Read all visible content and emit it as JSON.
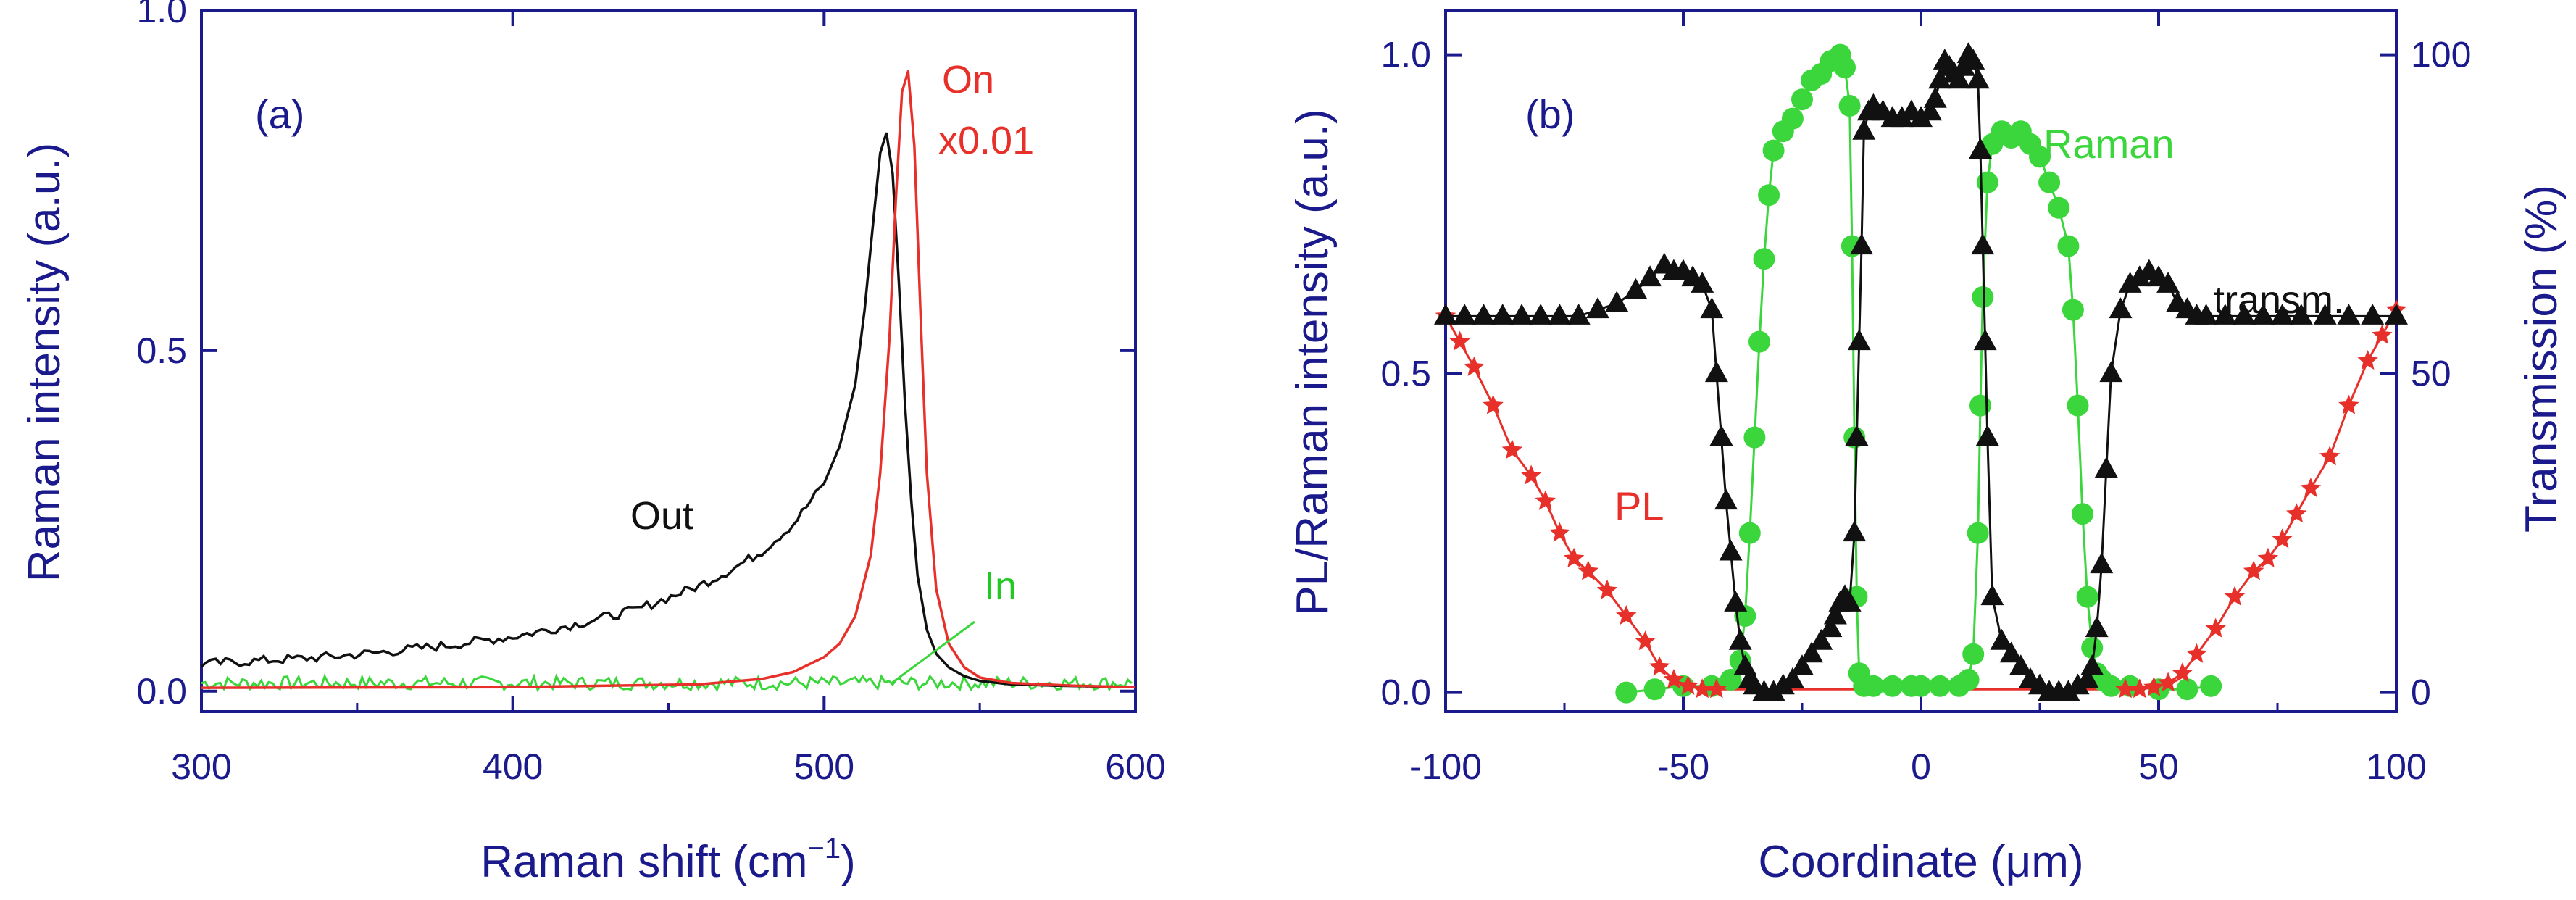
{
  "colors": {
    "axis": "#1a1a8c",
    "black": "#111111",
    "red": "#e8302a",
    "green": "#3bd63b",
    "greenDark": "#22c922"
  },
  "chart_data": [
    {
      "id": "a",
      "type": "line",
      "panel_label": "(a)",
      "xlabel": "Raman shift (cm",
      "xlabel_sup": "−1",
      "xlabel_end": ")",
      "ylabel": "Raman intensity (a.u.)",
      "xlim": [
        300,
        600
      ],
      "ylim": [
        -0.03,
        1.0
      ],
      "xticks": [
        300,
        400,
        500,
        600
      ],
      "xtick_labels": [
        "300",
        "400",
        "500",
        "600"
      ],
      "yticks": [
        0.0,
        0.5,
        1.0
      ],
      "ytick_labels": [
        "0.0",
        "0.5",
        "1.0"
      ],
      "series": [
        {
          "name": "Out",
          "color": "black",
          "x": [
            300,
            320,
            340,
            360,
            380,
            400,
            420,
            440,
            460,
            470,
            480,
            490,
            500,
            505,
            510,
            513,
            516,
            518,
            520,
            522,
            524,
            526,
            528,
            530,
            533,
            536,
            540,
            545,
            550,
            560,
            575,
            600
          ],
          "y": [
            0.04,
            0.045,
            0.05,
            0.058,
            0.068,
            0.08,
            0.098,
            0.12,
            0.155,
            0.178,
            0.205,
            0.245,
            0.305,
            0.36,
            0.45,
            0.56,
            0.7,
            0.79,
            0.82,
            0.76,
            0.6,
            0.42,
            0.28,
            0.17,
            0.09,
            0.055,
            0.035,
            0.022,
            0.015,
            0.01,
            0.008,
            0.006
          ]
        },
        {
          "name": "On x0.01",
          "color": "red",
          "x": [
            300,
            400,
            460,
            480,
            490,
            500,
            505,
            510,
            515,
            518,
            521,
            523,
            525,
            527,
            529,
            531,
            533,
            536,
            540,
            545,
            550,
            560,
            580,
            600
          ],
          "y": [
            0.005,
            0.006,
            0.01,
            0.018,
            0.028,
            0.05,
            0.07,
            0.11,
            0.2,
            0.32,
            0.52,
            0.72,
            0.88,
            0.91,
            0.8,
            0.55,
            0.32,
            0.15,
            0.07,
            0.035,
            0.02,
            0.012,
            0.008,
            0.006
          ]
        },
        {
          "name": "In",
          "color": "green",
          "x_start": 300,
          "x_end": 600,
          "baseline": 0.012,
          "noise": 0.01
        }
      ],
      "annotations": [
        {
          "text": "Out",
          "color": "black"
        },
        {
          "text": "On",
          "color": "red"
        },
        {
          "text": "x0.01",
          "color": "red"
        },
        {
          "text": "In",
          "color": "green"
        }
      ]
    },
    {
      "id": "b",
      "type": "line",
      "panel_label": "(b)",
      "xlabel": "Coordinate (μm)",
      "ylabel": "PL/Raman intensity (a.u.)",
      "y2label": "Transmission (%)",
      "xlim": [
        -100,
        100
      ],
      "ylim": [
        -0.03,
        1.07
      ],
      "y2lim": [
        -3,
        107
      ],
      "xticks": [
        -100,
        -50,
        0,
        50,
        100
      ],
      "xtick_labels": [
        "-100",
        "-50",
        "0",
        "50",
        "100"
      ],
      "yticks": [
        0.0,
        0.5,
        1.0
      ],
      "ytick_labels": [
        "0.0",
        "0.5",
        "1.0"
      ],
      "y2ticks": [
        0,
        50,
        100
      ],
      "y2tick_labels": [
        "0",
        "50",
        "100"
      ],
      "series": [
        {
          "name": "PL",
          "color": "red",
          "marker": "star",
          "x": [
            -100,
            -97,
            -94,
            -90,
            -86,
            -82,
            -79,
            -76,
            -73,
            -70,
            -66,
            -62,
            -58,
            -55,
            -52,
            -49,
            -46,
            -43,
            43,
            46,
            49,
            52,
            55,
            58,
            62,
            66,
            70,
            73,
            76,
            79,
            82,
            86,
            90,
            94,
            97,
            100
          ],
          "y": [
            0.59,
            0.55,
            0.51,
            0.45,
            0.38,
            0.34,
            0.3,
            0.25,
            0.21,
            0.19,
            0.16,
            0.12,
            0.08,
            0.04,
            0.02,
            0.01,
            0.005,
            0.005,
            0.005,
            0.005,
            0.008,
            0.015,
            0.03,
            0.06,
            0.1,
            0.15,
            0.19,
            0.21,
            0.24,
            0.28,
            0.32,
            0.37,
            0.45,
            0.52,
            0.56,
            0.6
          ]
        },
        {
          "name": "Raman",
          "color": "green",
          "marker": "circle",
          "x": [
            -62,
            -56,
            -50,
            -44,
            -40,
            -38,
            -37,
            -36,
            -35,
            -34,
            -33,
            -32,
            -31,
            -29,
            -27,
            -25,
            -23,
            -21,
            -19,
            -17,
            -16,
            -15,
            -14.5,
            -14,
            -13.5,
            -13,
            -12,
            -10,
            -6,
            -2,
            0,
            4,
            8,
            10,
            11,
            12,
            12.5,
            13,
            14,
            15,
            17,
            19,
            21,
            23,
            25,
            27,
            29,
            31,
            32,
            33,
            34,
            35,
            36,
            37,
            38,
            40,
            44,
            50,
            56,
            61
          ],
          "y": [
            0.0,
            0.005,
            0.01,
            0.01,
            0.02,
            0.05,
            0.12,
            0.25,
            0.4,
            0.55,
            0.68,
            0.78,
            0.85,
            0.88,
            0.9,
            0.93,
            0.96,
            0.97,
            0.99,
            1.0,
            0.98,
            0.92,
            0.7,
            0.4,
            0.15,
            0.03,
            0.01,
            0.01,
            0.01,
            0.01,
            0.01,
            0.01,
            0.01,
            0.02,
            0.06,
            0.25,
            0.45,
            0.62,
            0.8,
            0.86,
            0.88,
            0.87,
            0.88,
            0.86,
            0.84,
            0.8,
            0.76,
            0.7,
            0.6,
            0.45,
            0.28,
            0.15,
            0.07,
            0.03,
            0.02,
            0.01,
            0.01,
            0.005,
            0.005,
            0.01
          ]
        },
        {
          "name": "transm.",
          "color": "black",
          "marker": "triangle",
          "axis": "y2",
          "x": [
            -100,
            -96,
            -92,
            -88,
            -84,
            -80,
            -76,
            -72,
            -68,
            -64,
            -60,
            -57,
            -54,
            -52,
            -50,
            -48,
            -46,
            -44,
            -43,
            -42,
            -41,
            -40,
            -39,
            -38,
            -37,
            -36,
            -35,
            -33,
            -31,
            -29,
            -27,
            -25,
            -23,
            -21,
            -19,
            -18,
            -17,
            -16,
            -15,
            -14,
            -13.5,
            -13,
            -12.5,
            -12,
            -11,
            -10,
            -8,
            -6,
            -4,
            -2,
            0,
            2,
            3,
            4,
            5,
            6,
            7,
            8,
            9,
            10,
            11,
            12,
            12.5,
            13,
            13.5,
            14,
            15,
            17,
            19,
            21,
            23,
            25,
            27,
            29,
            31,
            33,
            35,
            36,
            37,
            38,
            39,
            40,
            42,
            44,
            46,
            48,
            50,
            52,
            54,
            56,
            58,
            60,
            64,
            68,
            72,
            76,
            80,
            85,
            90,
            95,
            100
          ],
          "y": [
            59,
            59,
            59,
            59,
            59,
            59,
            59,
            59,
            60,
            61,
            63,
            65,
            67,
            66,
            66,
            65,
            64,
            60,
            50,
            40,
            30,
            22,
            14,
            8,
            4,
            2,
            1,
            0,
            0,
            1,
            2,
            4,
            6,
            8,
            10,
            12,
            14,
            15,
            14,
            25,
            40,
            55,
            70,
            88,
            91,
            92,
            91,
            90,
            90,
            91,
            90,
            91,
            93,
            96,
            99,
            98,
            97,
            96,
            98,
            100,
            99,
            96,
            85,
            70,
            55,
            40,
            15,
            8,
            6,
            4,
            2,
            1,
            0,
            0,
            0,
            1,
            2,
            4,
            10,
            20,
            35,
            50,
            60,
            64,
            65,
            66,
            65,
            64,
            61,
            60,
            59,
            59,
            59,
            59,
            59,
            59,
            59,
            59,
            59,
            59,
            59
          ]
        }
      ],
      "annotations": [
        {
          "text": "Raman",
          "color": "green"
        },
        {
          "text": "transm.",
          "color": "black"
        },
        {
          "text": "PL",
          "color": "red"
        }
      ]
    }
  ]
}
